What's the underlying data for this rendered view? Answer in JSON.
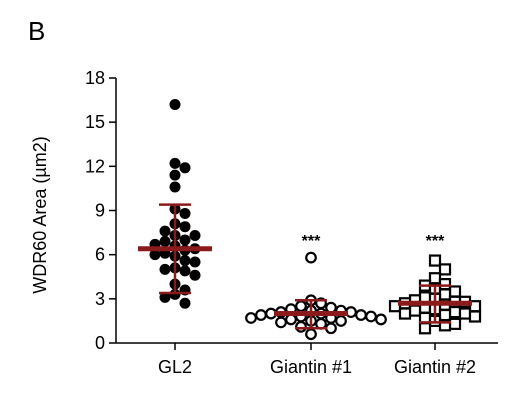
{
  "panel_label": "B",
  "chart_data": {
    "type": "scatter",
    "title": "",
    "xlabel": "",
    "ylabel": "WDR60 Area (µm2)",
    "ylim": [
      0,
      18
    ],
    "yticks": [
      0,
      3,
      6,
      9,
      12,
      15,
      18
    ],
    "ytick_labels": [
      "0",
      "3",
      "6",
      "9",
      "12",
      "15",
      "18"
    ],
    "categories": [
      "GL2",
      "Giantin #1",
      "Giantin #2"
    ],
    "colors": {
      "points": "#000000",
      "summary": "#8b1a1a",
      "axis": "#000000"
    },
    "series": [
      {
        "name": "GL2",
        "marker": "filled-circle",
        "mean": 6.4,
        "sd_low": 3.4,
        "sd_high": 9.4,
        "annotation": "",
        "values": [
          16.2,
          12.2,
          11.9,
          11.4,
          10.6,
          9.1,
          8.8,
          8.1,
          7.9,
          7.6,
          7.3,
          7.3,
          7.0,
          6.9,
          6.7,
          6.6,
          6.4,
          6.3,
          6.1,
          6.0,
          5.9,
          5.6,
          5.5,
          5.1,
          5.0,
          4.9,
          4.6,
          4.0,
          3.6,
          3.3,
          3.1,
          2.7
        ]
      },
      {
        "name": "Giantin #1",
        "marker": "open-circle",
        "mean": 2.0,
        "sd_low": 1.0,
        "sd_high": 2.9,
        "annotation": "***",
        "values": [
          5.8,
          2.9,
          2.7,
          2.5,
          2.4,
          2.3,
          2.2,
          2.2,
          2.1,
          2.1,
          2.0,
          2.0,
          1.9,
          1.9,
          1.8,
          1.8,
          1.7,
          1.7,
          1.6,
          1.6,
          1.5,
          1.5,
          1.4,
          1.3,
          1.1,
          1.0,
          0.6
        ]
      },
      {
        "name": "Giantin #2",
        "marker": "open-square",
        "mean": 2.7,
        "sd_low": 1.4,
        "sd_high": 3.9,
        "annotation": "***",
        "values": [
          5.6,
          5.0,
          4.4,
          4.0,
          3.9,
          3.7,
          3.5,
          3.3,
          3.1,
          3.0,
          2.9,
          2.8,
          2.8,
          2.7,
          2.6,
          2.5,
          2.5,
          2.4,
          2.3,
          2.2,
          2.1,
          2.0,
          2.0,
          1.9,
          1.8,
          1.7,
          1.5,
          1.3,
          1.2,
          1.0
        ]
      }
    ]
  }
}
